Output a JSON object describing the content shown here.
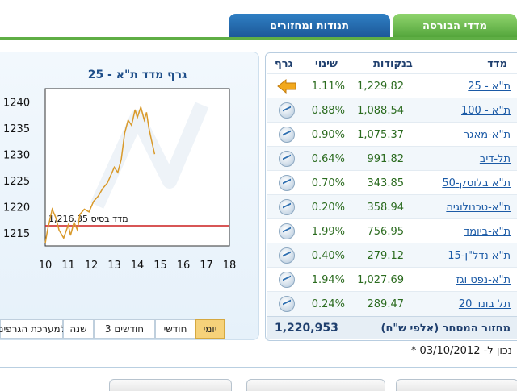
{
  "tabs": {
    "indices": "מדדי הבורסה",
    "movers": "תנודות ומחזורים"
  },
  "chart": {
    "title": "גרף מדד ת\"א - 25",
    "base_label": "1,216.35 מדד בסיס",
    "colors": {
      "line": "#d99a2b",
      "base": "#cc1f1f"
    }
  },
  "chart_data": {
    "type": "line",
    "title": "גרף מדד ת\"א - 25",
    "x_ticks": [
      "10",
      "11",
      "12",
      "13",
      "14",
      "15",
      "16",
      "17",
      "18"
    ],
    "y_ticks": [
      "1240",
      "1235",
      "1230",
      "1225",
      "1220",
      "1215"
    ],
    "xlim": [
      10,
      18
    ],
    "ylim": [
      1212.5,
      1242.5
    ],
    "base_value": 1216.35,
    "series": [
      {
        "x": [
          10.0,
          10.1,
          10.2,
          10.3,
          10.45,
          10.6,
          10.8,
          11.0,
          11.1,
          11.25,
          11.4,
          11.5,
          11.7,
          11.9,
          12.1,
          12.3,
          12.5,
          12.7,
          12.9,
          13.0,
          13.15,
          13.3,
          13.45,
          13.6,
          13.75,
          13.9,
          14.0,
          14.15,
          14.3,
          14.4,
          14.5,
          14.6,
          14.75
        ],
        "y": [
          1213.0,
          1215.5,
          1217.5,
          1219.5,
          1218.0,
          1215.5,
          1214.0,
          1216.5,
          1214.5,
          1217.0,
          1215.5,
          1218.5,
          1219.5,
          1219.0,
          1221.0,
          1222.0,
          1223.5,
          1224.5,
          1226.5,
          1227.5,
          1226.5,
          1229.0,
          1234.0,
          1236.5,
          1235.5,
          1238.5,
          1237.0,
          1239.0,
          1236.5,
          1238.0,
          1235.0,
          1233.0,
          1230.0
        ]
      }
    ]
  },
  "periods": [
    "יומי",
    "חודשי",
    "3 חודשים",
    "שנה",
    "למערכת הגרפים"
  ],
  "table": {
    "headers": {
      "index": "מדד",
      "points": "בנקודות",
      "change": "שינוי",
      "graph": "גרף"
    },
    "rows": [
      {
        "name": "ת\"א - 25",
        "points": "1,229.82",
        "change": "1.11%",
        "icon": "arrow-left-icon"
      },
      {
        "name": "ת\"א - 100",
        "points": "1,088.54",
        "change": "0.88%",
        "icon": "mini-chart-icon"
      },
      {
        "name": "ת\"א-מאגר",
        "points": "1,075.37",
        "change": "0.90%",
        "icon": "mini-chart-icon"
      },
      {
        "name": "תל-דיב",
        "points": "991.82",
        "change": "0.64%",
        "icon": "mini-chart-icon"
      },
      {
        "name": "ת\"א בלוטק-50",
        "points": "343.85",
        "change": "0.70%",
        "icon": "mini-chart-icon"
      },
      {
        "name": "ת\"א-טכנולוגיה",
        "points": "358.94",
        "change": "0.20%",
        "icon": "mini-chart-icon"
      },
      {
        "name": "ת\"א-ביומד",
        "points": "756.95",
        "change": "1.99%",
        "icon": "mini-chart-icon"
      },
      {
        "name": "ת\"א נדל\"ן-15",
        "points": "279.12",
        "change": "0.40%",
        "icon": "mini-chart-icon"
      },
      {
        "name": "ת\"א-נפט וגז",
        "points": "1,027.69",
        "change": "1.94%",
        "icon": "mini-chart-icon"
      },
      {
        "name": "תל בונד 20",
        "points": "289.47",
        "change": "0.24%",
        "icon": "mini-chart-icon"
      }
    ],
    "turnover_label": "מחזור המסחר (אלפי ש\"ח)",
    "turnover_value": "1,220,953"
  },
  "updated": "* נכון ל- 03/10/2012"
}
